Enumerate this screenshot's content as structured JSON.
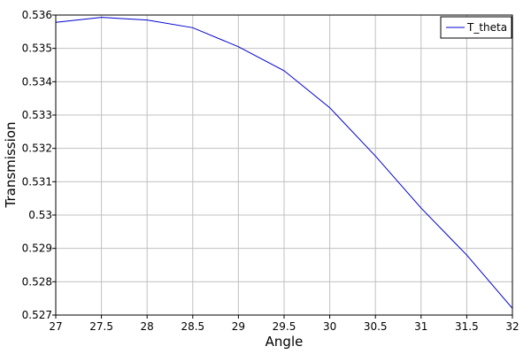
{
  "chart_data": {
    "type": "line",
    "title": "",
    "xlabel": "Angle",
    "ylabel": "Transmission",
    "xlim": [
      27,
      32
    ],
    "ylim": [
      0.527,
      0.536
    ],
    "xticks": [
      "27",
      "27.5",
      "28",
      "28.5",
      "29",
      "29.5",
      "30",
      "30.5",
      "31",
      "31.5",
      "32"
    ],
    "yticks": [
      "0.527",
      "0.528",
      "0.529",
      "0.53",
      "0.531",
      "0.532",
      "0.533",
      "0.534",
      "0.535",
      "0.536"
    ],
    "grid": true,
    "legend_position": "top-right",
    "series": [
      {
        "name": "T_theta",
        "color": "#0000cc",
        "x": [
          27,
          27.5,
          28,
          28.5,
          29,
          29.5,
          30,
          30.5,
          31,
          31.5,
          32
        ],
        "y": [
          0.53578,
          0.53593,
          0.53585,
          0.53562,
          0.53505,
          0.53433,
          0.53322,
          0.53177,
          0.53021,
          0.5288,
          0.5272
        ]
      }
    ]
  }
}
